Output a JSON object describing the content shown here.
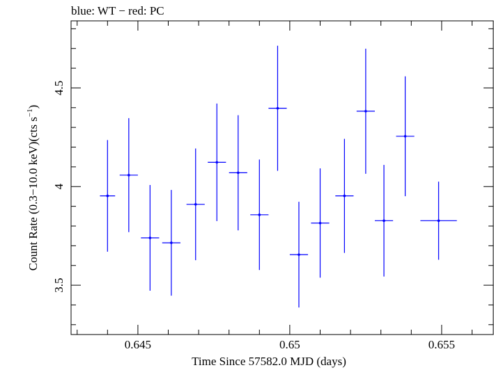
{
  "chart_data": {
    "type": "scatter",
    "title": "blue: WT − red: PC",
    "xlabel": "Time Since 57582.0 MJD (days)",
    "ylabel_main": "Count Rate (0.3−10.0 keV)(cts s",
    "ylabel_sup": "−1",
    "ylabel_end": ")",
    "xlim": [
      0.6428,
      0.6567
    ],
    "ylim": [
      3.25,
      4.84
    ],
    "xticks": [
      {
        "value": 0.645,
        "label": "0.645"
      },
      {
        "value": 0.65,
        "label": "0.65"
      },
      {
        "value": 0.655,
        "label": "0.655"
      }
    ],
    "yticks": [
      {
        "value": 3.5,
        "label": "3.5"
      },
      {
        "value": 4.0,
        "label": "4"
      },
      {
        "value": 4.5,
        "label": "4.5"
      }
    ],
    "x_minor_step": 0.001,
    "y_minor_step": 0.1,
    "grid": false,
    "series": [
      {
        "color": "#0000ff",
        "points": [
          {
            "x": 0.644,
            "xerr": 0.00025,
            "y": 3.953,
            "yerr": 0.283
          },
          {
            "x": 0.6447,
            "xerr": 0.0003,
            "y": 4.058,
            "yerr": 0.289
          },
          {
            "x": 0.6454,
            "xerr": 0.0003,
            "y": 3.74,
            "yerr": 0.268
          },
          {
            "x": 0.6461,
            "xerr": 0.0003,
            "y": 3.715,
            "yerr": 0.268
          },
          {
            "x": 0.6469,
            "xerr": 0.0003,
            "y": 3.91,
            "yerr": 0.283
          },
          {
            "x": 0.6476,
            "xerr": 0.0003,
            "y": 4.123,
            "yerr": 0.298
          },
          {
            "x": 0.6483,
            "xerr": 0.0003,
            "y": 4.07,
            "yerr": 0.292
          },
          {
            "x": 0.649,
            "xerr": 0.0003,
            "y": 3.857,
            "yerr": 0.28
          },
          {
            "x": 0.6496,
            "xerr": 0.0003,
            "y": 4.397,
            "yerr": 0.317
          },
          {
            "x": 0.6503,
            "xerr": 0.0003,
            "y": 3.655,
            "yerr": 0.268
          },
          {
            "x": 0.651,
            "xerr": 0.0003,
            "y": 3.815,
            "yerr": 0.277
          },
          {
            "x": 0.6518,
            "xerr": 0.0003,
            "y": 3.953,
            "yerr": 0.289
          },
          {
            "x": 0.6525,
            "xerr": 0.0003,
            "y": 4.382,
            "yerr": 0.317
          },
          {
            "x": 0.6531,
            "xerr": 0.0003,
            "y": 3.827,
            "yerr": 0.283
          },
          {
            "x": 0.6538,
            "xerr": 0.0003,
            "y": 4.255,
            "yerr": 0.304
          },
          {
            "x": 0.6549,
            "xerr": 0.0006,
            "y": 3.827,
            "yerr": 0.198
          }
        ]
      }
    ]
  }
}
